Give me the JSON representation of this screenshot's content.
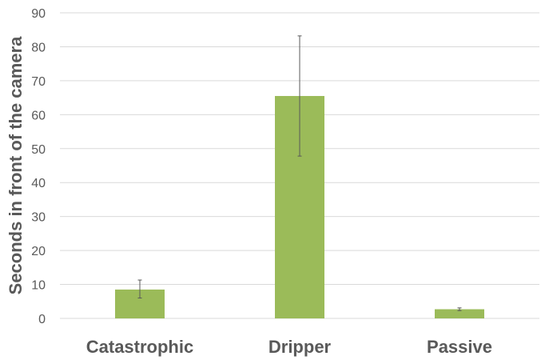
{
  "chart_data": {
    "type": "bar",
    "title": "",
    "xlabel": "",
    "ylabel": "Seconds in front of the camera",
    "categories": [
      "Catastrophic",
      "Dripper",
      "Passive"
    ],
    "values": [
      8.5,
      65.5,
      2.7
    ],
    "error_low": [
      6.0,
      47.8,
      2.3
    ],
    "error_high": [
      11.3,
      83.2,
      3.1
    ],
    "ylim": [
      0,
      90
    ],
    "yticks": [
      0,
      10,
      20,
      30,
      40,
      50,
      60,
      70,
      80,
      90
    ],
    "bar_color": "#9bbb59",
    "grid": true,
    "legend": "none"
  }
}
